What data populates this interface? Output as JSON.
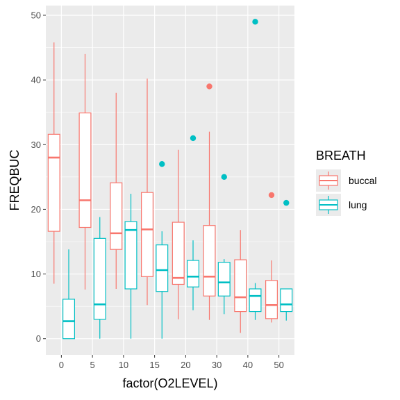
{
  "chart_data": {
    "type": "boxplot",
    "xlabel": "factor(O2LEVEL)",
    "ylabel": "FREQBUC",
    "categories": [
      "0",
      "5",
      "10",
      "15",
      "20",
      "30",
      "40",
      "50"
    ],
    "ylim": [
      -2.5,
      51.5
    ],
    "yticks": [
      0,
      10,
      20,
      30,
      40,
      50
    ],
    "grid": true,
    "legend": {
      "title": "BREATH",
      "position": "right"
    },
    "series": [
      {
        "name": "buccal",
        "color": "#F8766D",
        "boxes": [
          {
            "min": 8.5,
            "q1": 16.6,
            "median": 28.0,
            "q3": 31.6,
            "max": 45.8,
            "outliers": []
          },
          {
            "min": 7.6,
            "q1": 17.2,
            "median": 21.4,
            "q3": 34.9,
            "max": 44.0,
            "outliers": []
          },
          {
            "min": 7.7,
            "q1": 13.8,
            "median": 16.3,
            "q3": 24.1,
            "max": 38.0,
            "outliers": []
          },
          {
            "min": 5.2,
            "q1": 9.6,
            "median": 16.9,
            "q3": 22.6,
            "max": 40.2,
            "outliers": []
          },
          {
            "min": 3.0,
            "q1": 8.4,
            "median": 9.4,
            "q3": 18.0,
            "max": 29.2,
            "outliers": []
          },
          {
            "min": 2.9,
            "q1": 6.6,
            "median": 9.6,
            "q3": 17.5,
            "max": 32.0,
            "outliers": [
              39.0
            ]
          },
          {
            "min": 0.9,
            "q1": 4.2,
            "median": 6.4,
            "q3": 12.2,
            "max": 16.8,
            "outliers": []
          },
          {
            "min": 2.5,
            "q1": 3.1,
            "median": 5.2,
            "q3": 9.0,
            "max": 12.1,
            "outliers": [
              22.2
            ]
          }
        ]
      },
      {
        "name": "lung",
        "color": "#00BFC4",
        "boxes": [
          {
            "min": 0.0,
            "q1": 0.0,
            "median": 2.7,
            "q3": 6.1,
            "max": 13.8,
            "outliers": []
          },
          {
            "min": 0.0,
            "q1": 3.0,
            "median": 5.3,
            "q3": 15.5,
            "max": 18.8,
            "outliers": []
          },
          {
            "min": 0.0,
            "q1": 7.7,
            "median": 16.8,
            "q3": 18.1,
            "max": 22.4,
            "outliers": []
          },
          {
            "min": 0.0,
            "q1": 7.3,
            "median": 10.6,
            "q3": 14.5,
            "max": 16.6,
            "outliers": [
              27.0
            ]
          },
          {
            "min": 4.4,
            "q1": 8.0,
            "median": 9.6,
            "q3": 12.1,
            "max": 15.2,
            "outliers": [
              31.0
            ]
          },
          {
            "min": 3.8,
            "q1": 6.6,
            "median": 8.7,
            "q3": 11.8,
            "max": 12.3,
            "outliers": [
              25.0
            ]
          },
          {
            "min": 2.9,
            "q1": 4.2,
            "median": 6.6,
            "q3": 7.7,
            "max": 8.6,
            "outliers": [
              49.0
            ]
          },
          {
            "min": 2.8,
            "q1": 4.2,
            "median": 5.3,
            "q3": 7.7,
            "max": 7.7,
            "outliers": [
              21.0
            ]
          }
        ]
      }
    ]
  }
}
